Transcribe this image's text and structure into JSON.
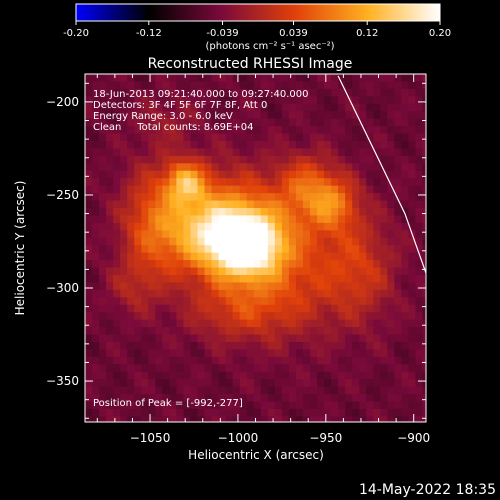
{
  "colorbar": {
    "ticks": [
      "-0.20",
      "-0.12",
      "-0.039",
      "0.039",
      "0.12",
      "0.20"
    ],
    "tick_values": [
      -0.2,
      -0.12,
      -0.039,
      0.039,
      0.12,
      0.2
    ],
    "range": [
      -0.2,
      0.2
    ],
    "unit_label": "(photons cm⁻² s⁻¹ asec⁻²)",
    "colors": [
      "#0000ff",
      "#000000",
      "#7a0a3a",
      "#e0400a",
      "#ffb020",
      "#ffffff"
    ]
  },
  "chart_data": {
    "type": "heatmap",
    "title": "Reconstructed RHESSI Image",
    "xlabel": "Heliocentric X (arcsec)",
    "ylabel": "Heliocentric Y (arcsec)",
    "xlim": [
      -1087,
      -893
    ],
    "ylim": [
      -372,
      -185
    ],
    "xticks": [
      -1050,
      -1000,
      -950,
      -900
    ],
    "xtick_labels": [
      "−1050",
      "−1000",
      "−950",
      "−900"
    ],
    "yticks": [
      -200,
      -250,
      -300,
      -350
    ],
    "ytick_labels": [
      "−200",
      "−250",
      "−300",
      "−350"
    ],
    "info_lines": [
      "18-Jun-2013 09:21:40.000 to 09:27:40.000",
      "Detectors: 3F 4F 5F 6F 7F 8F, Att 0",
      "Energy Range: 3.0 - 6.0 keV",
      "Clean     Total counts: 8.69E+04"
    ],
    "peak_label": "Position of Peak = [-992,-277]",
    "peak": [
      -992,
      -277
    ],
    "sources": [
      {
        "x": -995,
        "y": -277,
        "sx": 14,
        "sy": 12,
        "a": 0.2
      },
      {
        "x": -1018,
        "y": -270,
        "sx": 20,
        "sy": 16,
        "a": 0.12
      },
      {
        "x": -1030,
        "y": -243,
        "sx": 8,
        "sy": 8,
        "a": 0.13
      },
      {
        "x": -1005,
        "y": -262,
        "sx": 28,
        "sy": 20,
        "a": 0.08
      },
      {
        "x": -970,
        "y": -290,
        "sx": 26,
        "sy": 24,
        "a": 0.075
      },
      {
        "x": -960,
        "y": -245,
        "sx": 12,
        "sy": 12,
        "a": 0.085
      },
      {
        "x": -945,
        "y": -255,
        "sx": 10,
        "sy": 10,
        "a": 0.09
      },
      {
        "x": -1050,
        "y": -265,
        "sx": 12,
        "sy": 22,
        "a": 0.07
      },
      {
        "x": -1000,
        "y": -312,
        "sx": 22,
        "sy": 12,
        "a": 0.06
      },
      {
        "x": -930,
        "y": -290,
        "sx": 14,
        "sy": 20,
        "a": 0.06
      },
      {
        "x": -1060,
        "y": -300,
        "sx": 10,
        "sy": 10,
        "a": 0.04
      },
      {
        "x": -1040,
        "y": -210,
        "sx": 12,
        "sy": 10,
        "a": 0.03
      }
    ],
    "background": -0.05,
    "limb": [
      [
        -943,
        -186
      ],
      [
        -905,
        -260
      ],
      [
        -893,
        -292
      ]
    ]
  },
  "footer": {
    "date": "14-May-2022 18:35"
  }
}
